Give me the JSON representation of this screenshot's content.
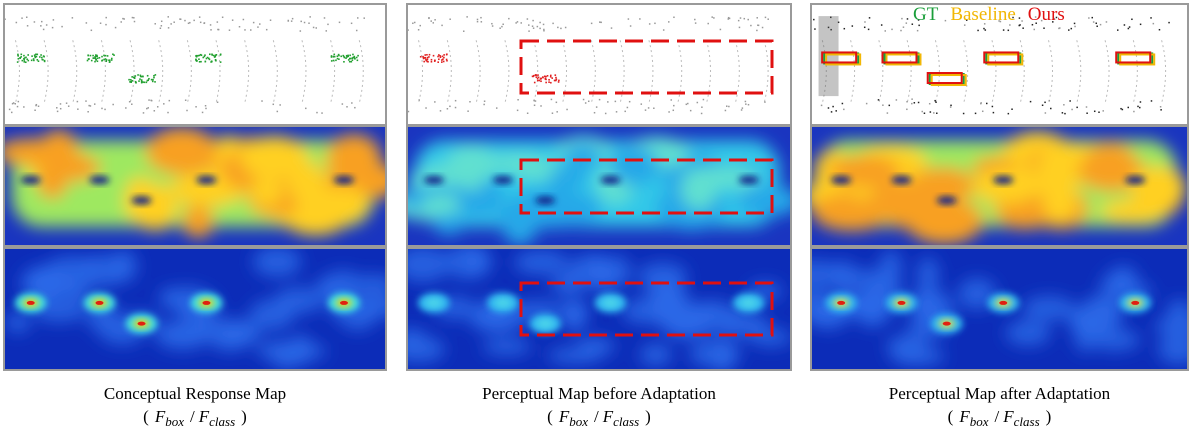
{
  "legend": [
    {
      "label": "GT",
      "color": "#1a9e3a"
    },
    {
      "label": "Baseline",
      "color": "#f2b705"
    },
    {
      "label": "Ours",
      "color": "#e01010"
    }
  ],
  "panels": [
    {
      "caption": "Conceptual Response Map",
      "formula": {
        "open": "(",
        "f1": "F",
        "sub1": "box",
        "sep": "/",
        "f2": "F",
        "sub2": "class",
        "close": ")"
      }
    },
    {
      "caption": "Perceptual Map before Adaptation",
      "formula": {
        "open": "(",
        "f1": "F",
        "sub1": "box",
        "sep": "/",
        "f2": "F",
        "sub2": "class",
        "close": ")"
      }
    },
    {
      "caption": "Perceptual Map after Adaptation",
      "formula": {
        "open": "(",
        "f1": "F",
        "sub1": "box",
        "sep": "/",
        "f2": "F",
        "sub2": "class",
        "close": ")"
      }
    }
  ]
}
